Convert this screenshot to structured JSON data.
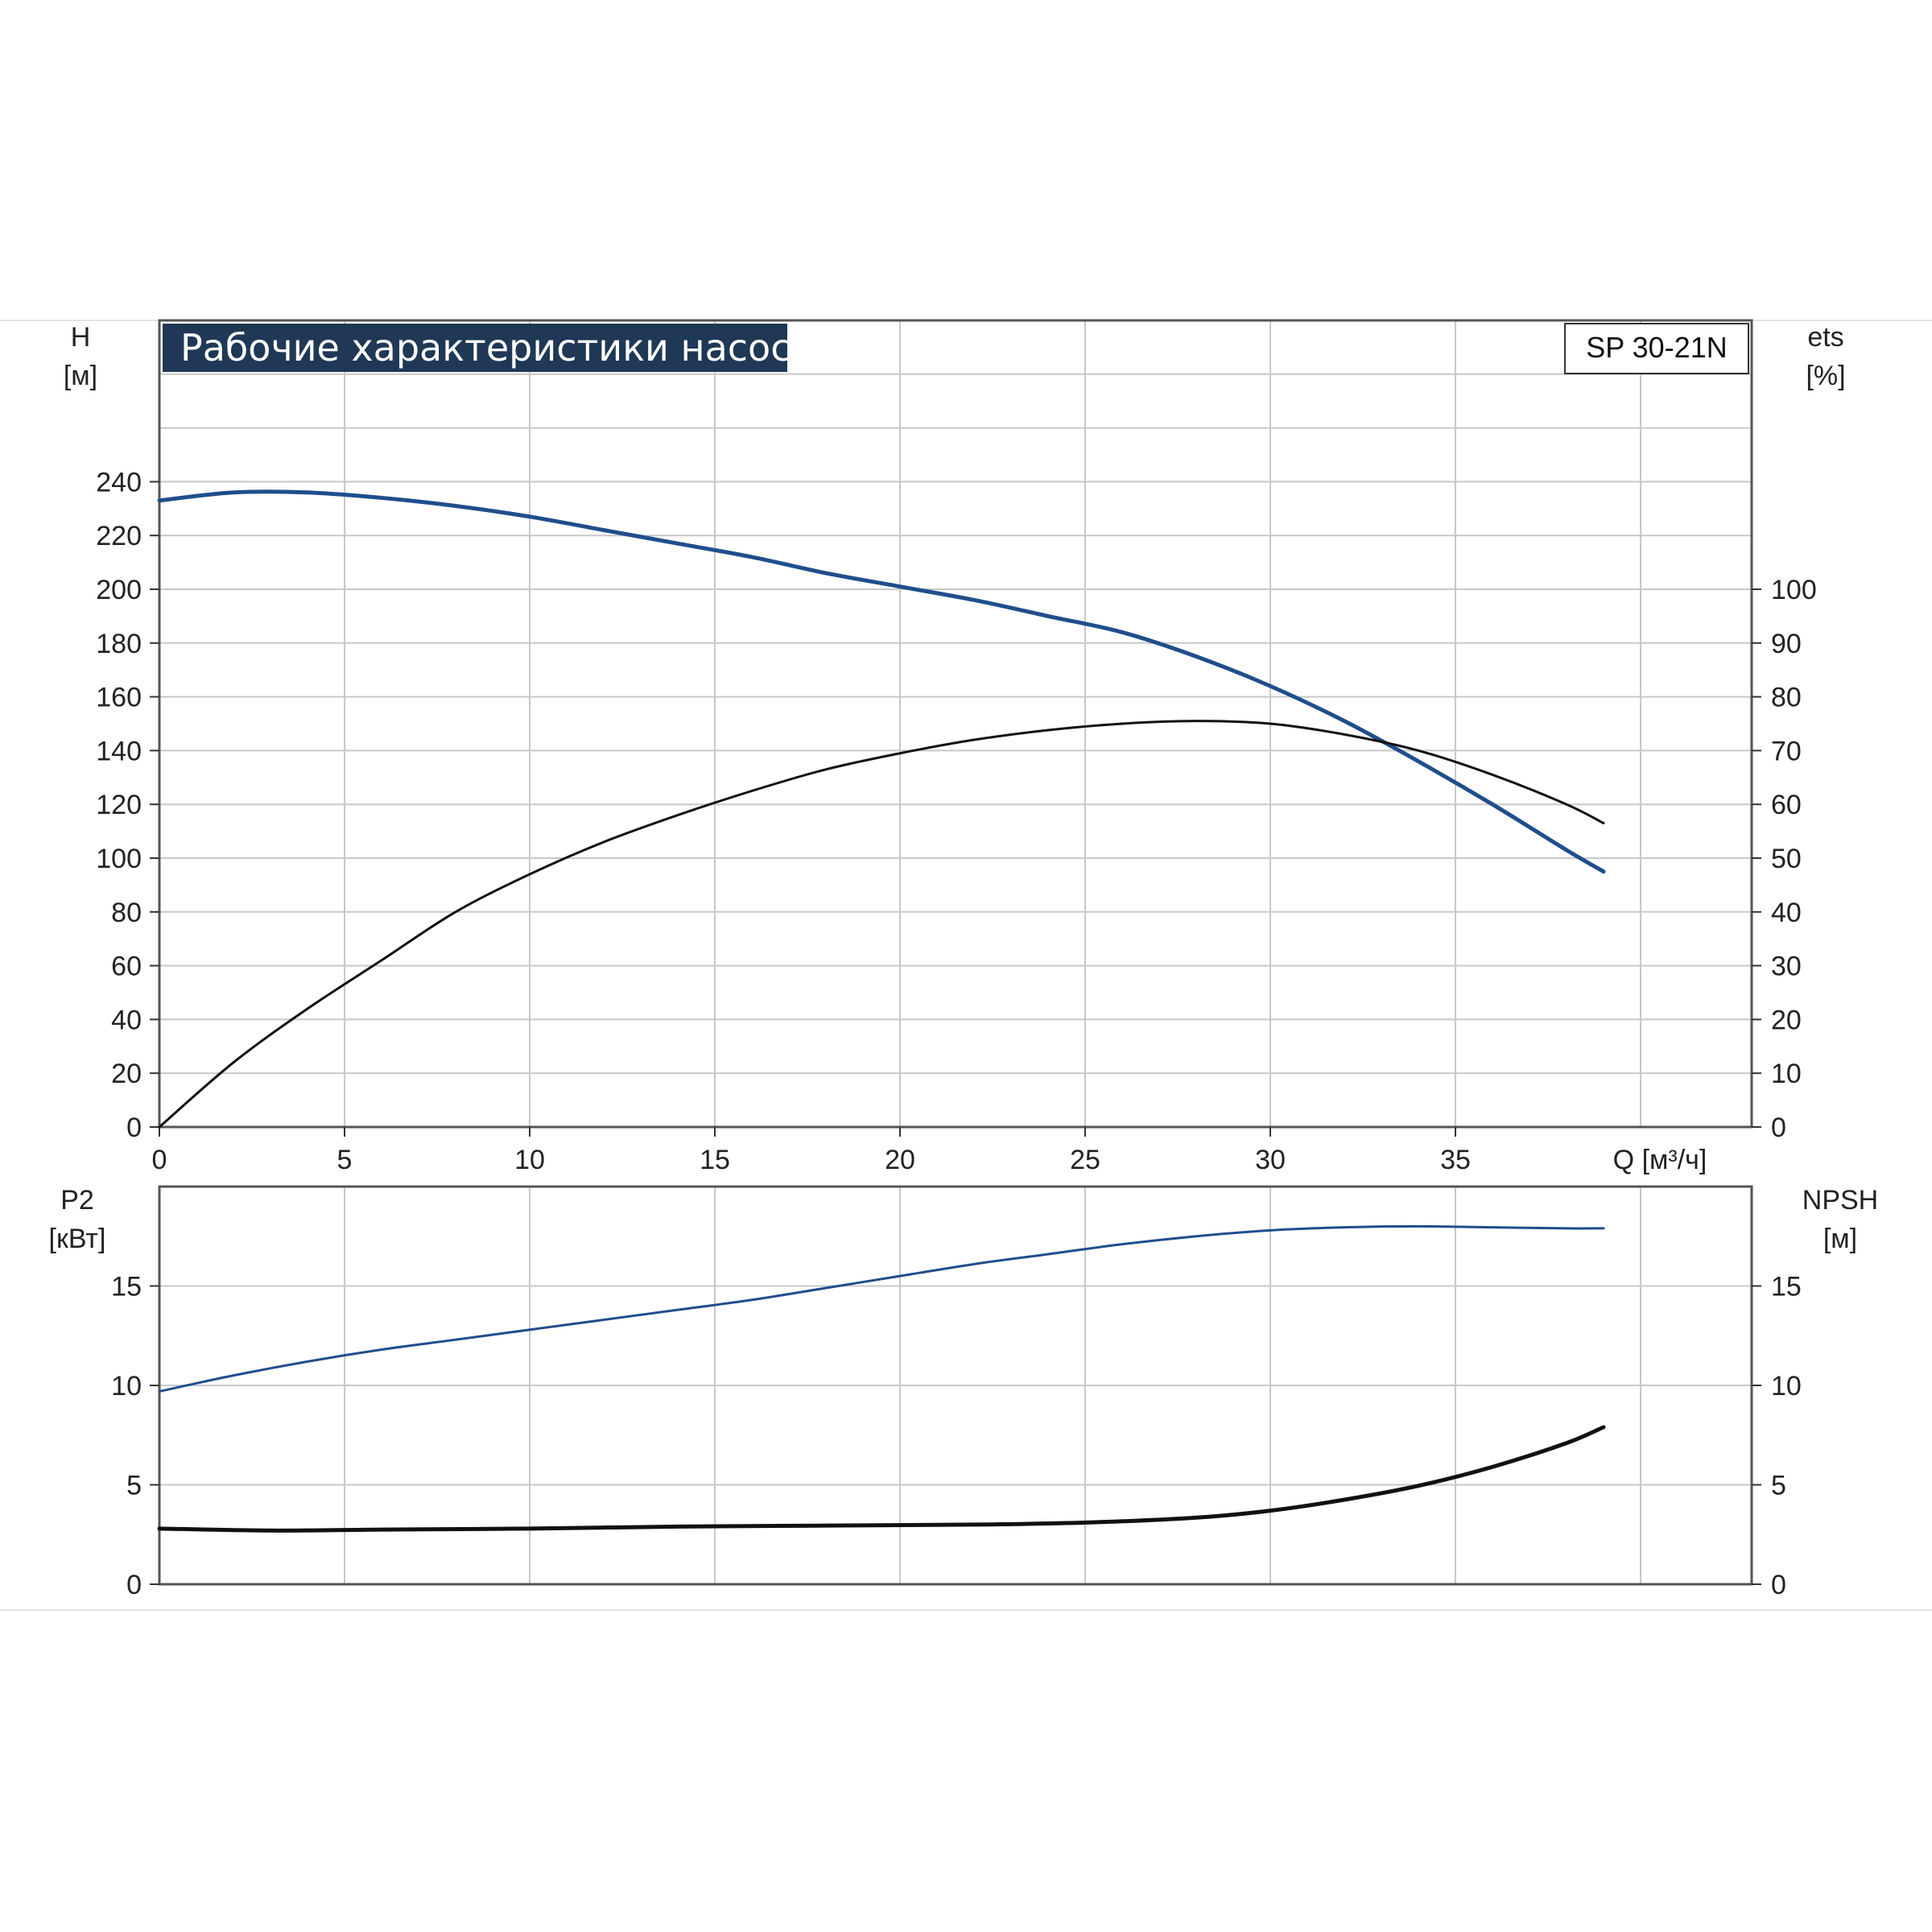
{
  "chart_data": [
    {
      "type": "line",
      "title": "Рабочие характеристики насоса",
      "model": "SP 30-21N",
      "xlabel": "Q [м³/ч]",
      "ylabel_left": [
        "H",
        "[м]"
      ],
      "ylabel_right": [
        "ets",
        "[%]"
      ],
      "xlim": [
        0,
        43
      ],
      "ylim_left": [
        0,
        300
      ],
      "ylim_right": [
        0,
        150
      ],
      "x_ticks": [
        "0",
        "5",
        "10",
        "15",
        "20",
        "25",
        "30",
        "35"
      ],
      "y_ticks_left": [
        "0",
        "20",
        "40",
        "60",
        "80",
        "100",
        "120",
        "140",
        "160",
        "180",
        "200",
        "220",
        "240"
      ],
      "y_ticks_right": [
        "0",
        "10",
        "20",
        "30",
        "40",
        "50",
        "60",
        "70",
        "80",
        "90",
        "100"
      ],
      "grid": true,
      "series": [
        {
          "axis": "left",
          "color": "#1f4e8c",
          "x": [
            0,
            2,
            4,
            6,
            8,
            10,
            12,
            14,
            16,
            18,
            20,
            22,
            24,
            26,
            28,
            30,
            32,
            34,
            36,
            38,
            39
          ],
          "y": [
            233,
            236,
            236,
            234,
            231,
            227,
            222,
            217,
            212,
            206,
            201,
            196,
            190,
            184,
            175,
            164,
            151,
            136,
            120,
            103,
            95
          ]
        },
        {
          "axis": "right",
          "color": "#111111",
          "x": [
            0,
            2,
            4,
            6,
            8,
            10,
            12,
            14,
            16,
            18,
            20,
            22,
            24,
            26,
            28,
            30,
            32,
            34,
            36,
            38,
            39
          ],
          "y": [
            0,
            12,
            22,
            31,
            40,
            47,
            53,
            58,
            62.5,
            66.5,
            69.5,
            72,
            73.8,
            75,
            75.5,
            75,
            73,
            70,
            65.5,
            60,
            56.5
          ]
        }
      ]
    },
    {
      "type": "line",
      "ylabel_left": [
        "P2",
        "[кВт]"
      ],
      "ylabel_right": [
        "NPSH",
        "[м]"
      ],
      "xlim": [
        0,
        43
      ],
      "ylim_left": [
        0,
        20
      ],
      "ylim_right": [
        0,
        20
      ],
      "y_ticks_left": [
        "0",
        "5",
        "10",
        "15"
      ],
      "y_ticks_right": [
        "0",
        "5",
        "10",
        "15"
      ],
      "grid": true,
      "series": [
        {
          "axis": "left",
          "color": "#1f4e8c",
          "x": [
            0,
            2,
            4,
            6,
            8,
            10,
            12,
            14,
            16,
            18,
            20,
            22,
            24,
            26,
            28,
            30,
            32,
            34,
            36,
            38,
            39
          ],
          "y": [
            9.7,
            10.5,
            11.2,
            11.8,
            12.3,
            12.8,
            13.3,
            13.8,
            14.3,
            14.9,
            15.5,
            16.1,
            16.6,
            17.1,
            17.5,
            17.8,
            17.95,
            18,
            17.95,
            17.9,
            17.9
          ]
        },
        {
          "axis": "right",
          "color": "#111111",
          "x": [
            0,
            3,
            6,
            10,
            14,
            18,
            22,
            25,
            28,
            30,
            32,
            34,
            36,
            38,
            39
          ],
          "y": [
            2.8,
            2.7,
            2.75,
            2.8,
            2.9,
            2.95,
            3.0,
            3.1,
            3.35,
            3.7,
            4.25,
            4.95,
            5.9,
            7.1,
            7.9
          ]
        }
      ]
    }
  ]
}
